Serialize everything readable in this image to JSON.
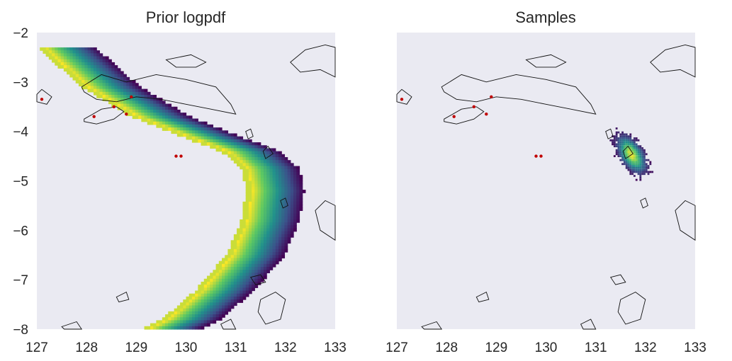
{
  "figure": {
    "panels": [
      {
        "title": "Prior logpdf",
        "show_y_ticks": true
      },
      {
        "title": "Samples",
        "show_y_ticks": false
      }
    ]
  },
  "chart_data": [
    {
      "type": "heatmap",
      "title": "Prior logpdf",
      "xlabel": "",
      "ylabel": "",
      "xlim": [
        127,
        133
      ],
      "ylim": [
        -8,
        -2
      ],
      "x_ticks": [
        "127",
        "128",
        "129",
        "130",
        "131",
        "132",
        "133"
      ],
      "y_ticks": [
        "−2",
        "−3",
        "−4",
        "−5",
        "−6",
        "−7",
        "−8"
      ],
      "grid": false,
      "colormap": "viridis",
      "description_band": {
        "center_line": [
          [
            127.1,
            -2.3
          ],
          [
            128.0,
            -3.1
          ],
          [
            129.0,
            -3.7
          ],
          [
            130.0,
            -4.1
          ],
          [
            130.8,
            -4.4
          ],
          [
            131.2,
            -4.75
          ],
          [
            131.3,
            -5.2
          ],
          [
            131.2,
            -5.8
          ],
          [
            130.9,
            -6.5
          ],
          [
            130.3,
            -7.2
          ],
          [
            129.6,
            -7.8
          ],
          [
            129.2,
            -8.0
          ]
        ],
        "high_side": "inner (yellow)",
        "low_side": "outer (purple)"
      },
      "markers": [
        [
          127.1,
          -3.35
        ],
        [
          128.15,
          -3.7
        ],
        [
          128.55,
          -3.5
        ],
        [
          128.8,
          -3.65
        ],
        [
          128.9,
          -3.3
        ],
        [
          129.8,
          -4.5
        ],
        [
          129.9,
          -4.5
        ]
      ],
      "marker_color": "#c00000"
    },
    {
      "type": "heatmap",
      "title": "Samples",
      "xlabel": "",
      "ylabel": "",
      "xlim": [
        127,
        133
      ],
      "ylim": [
        -8,
        -2
      ],
      "x_ticks": [
        "127",
        "128",
        "129",
        "130",
        "131",
        "132",
        "133"
      ],
      "grid": false,
      "colormap": "viridis",
      "sample_cluster": {
        "center": [
          131.7,
          -4.45
        ],
        "peak_lon": 131.7,
        "peak_lat": -4.45,
        "extent_lon": [
          131.0,
          132.3
        ],
        "extent_lat": [
          -3.8,
          -6.0
        ]
      },
      "markers": [
        [
          127.1,
          -3.35
        ],
        [
          128.15,
          -3.7
        ],
        [
          128.55,
          -3.5
        ],
        [
          128.8,
          -3.65
        ],
        [
          128.9,
          -3.3
        ],
        [
          129.8,
          -4.5
        ],
        [
          129.9,
          -4.5
        ]
      ],
      "marker_color": "#c00000"
    }
  ],
  "colors": {
    "axes_bg": "#eaeaf2",
    "coast": "#111111",
    "viridis": [
      "#440154",
      "#3b528b",
      "#21918c",
      "#5ec962",
      "#fde725"
    ]
  }
}
